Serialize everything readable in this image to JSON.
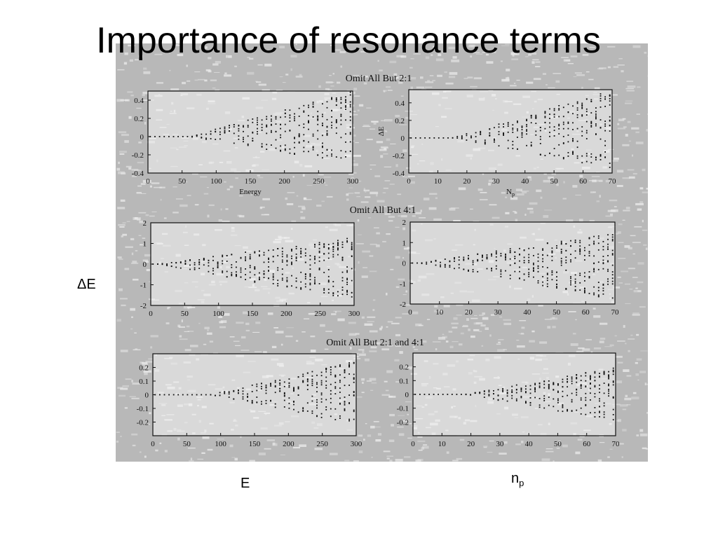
{
  "slide": {
    "title": "Importance of resonance terms",
    "y_axis_label": "ΔE",
    "x_axis_label_left": "E",
    "x_axis_label_right_base": "n",
    "x_axis_label_right_sub": "p"
  },
  "colors": {
    "scan_background": "#b8b8b8",
    "speckle": "#e9e9e9",
    "panel_fill": "#f4f4f4",
    "ink": "#111111"
  },
  "chart_data": [
    {
      "type": "scatter",
      "group_title": "Omit All But 2:1",
      "panels": [
        {
          "id": "p21_energy",
          "xlabel": "Energy",
          "ylabel": "",
          "xlim": [
            0,
            300
          ],
          "ylim": [
            -0.4,
            0.5
          ],
          "xticks": [
            0,
            50,
            100,
            150,
            200,
            250,
            300
          ],
          "yticks": [
            {
              "v": 0.4,
              "label": "0.4"
            },
            {
              "v": 0.2,
              "label": "0.2"
            },
            {
              "v": 0,
              "label": "0"
            },
            {
              "v": -0.2,
              "label": "-0.2"
            },
            {
              "v": -0.4,
              "label": "-0.4"
            }
          ],
          "envelope": {
            "start": 60,
            "upper": 0.5,
            "lower": -0.3,
            "up_frac": 0.7
          },
          "series": [
            {
              "points": []
            }
          ]
        },
        {
          "id": "p21_np",
          "xlabel": "N",
          "xlabel_sub": "p",
          "ylabel": "ΔE",
          "xlim": [
            0,
            70
          ],
          "ylim": [
            -0.4,
            0.55
          ],
          "xticks": [
            0,
            10,
            20,
            30,
            40,
            50,
            60,
            70
          ],
          "yticks": [
            {
              "v": 0.4,
              "label": "0.4"
            },
            {
              "v": 0.2,
              "label": "0.2"
            },
            {
              "v": 0,
              "label": "0"
            },
            {
              "v": -0.2,
              "label": "-0.2"
            },
            {
              "v": -0.4,
              "label": "-0.4"
            }
          ],
          "envelope": {
            "start": 15,
            "upper": 0.55,
            "lower": -0.35,
            "up_frac": 0.7
          },
          "series": [
            {
              "points": []
            }
          ]
        }
      ]
    },
    {
      "type": "scatter",
      "group_title": "Omit All But 4:1",
      "panels": [
        {
          "id": "p41_energy",
          "xlabel": "",
          "ylabel": "",
          "xlim": [
            0,
            300
          ],
          "ylim": [
            -2,
            2
          ],
          "xticks": [
            0,
            50,
            100,
            150,
            200,
            250,
            300
          ],
          "yticks": [
            {
              "v": 2,
              "label": "2"
            },
            {
              "v": 1,
              "label": "1"
            },
            {
              "v": 0,
              "label": "0"
            },
            {
              "v": -1,
              "label": "-1"
            },
            {
              "v": -2,
              "label": "-2"
            }
          ],
          "envelope": {
            "start": 10,
            "upper": 1.3,
            "lower": -1.8,
            "up_frac": 0.5
          },
          "series": [
            {
              "points": []
            }
          ]
        },
        {
          "id": "p41_np",
          "xlabel": "",
          "ylabel": "",
          "xlim": [
            0,
            70
          ],
          "ylim": [
            -2,
            2
          ],
          "xticks": [
            0,
            10,
            20,
            30,
            40,
            50,
            60,
            70
          ],
          "yticks": [
            {
              "v": 2,
              "label": "2"
            },
            {
              "v": 1,
              "label": "1"
            },
            {
              "v": 0,
              "label": "0"
            },
            {
              "v": -1,
              "label": "-1"
            },
            {
              "v": -2,
              "label": "-2"
            }
          ],
          "envelope": {
            "start": 3,
            "upper": 1.5,
            "lower": -1.8,
            "up_frac": 0.5
          },
          "series": [
            {
              "points": []
            }
          ]
        }
      ]
    },
    {
      "type": "scatter",
      "group_title": "Omit All But 2:1 and 4:1",
      "panels": [
        {
          "id": "p2141_energy",
          "xlabel": "",
          "ylabel": "",
          "xlim": [
            0,
            300
          ],
          "ylim": [
            -0.3,
            0.3
          ],
          "xticks": [
            0,
            50,
            100,
            150,
            200,
            250,
            300
          ],
          "yticks": [
            {
              "v": 0.2,
              "label": "0.2"
            },
            {
              "v": 0.1,
              "label": "0.1"
            },
            {
              "v": 0,
              "label": "0"
            },
            {
              "v": -0.1,
              "label": "-0.1"
            },
            {
              "v": -0.2,
              "label": "-0.2"
            }
          ],
          "envelope": {
            "start": 85,
            "upper": 0.25,
            "lower": -0.22,
            "up_frac": 0.6
          },
          "series": [
            {
              "points": []
            }
          ]
        },
        {
          "id": "p2141_np",
          "xlabel": "",
          "ylabel": "",
          "xlim": [
            0,
            70
          ],
          "ylim": [
            -0.3,
            0.3
          ],
          "xticks": [
            0,
            10,
            20,
            30,
            40,
            50,
            60,
            70
          ],
          "yticks": [
            {
              "v": 0.2,
              "label": "0.2"
            },
            {
              "v": 0.1,
              "label": "0.1"
            },
            {
              "v": 0,
              "label": "0"
            },
            {
              "v": -0.1,
              "label": "-0.1"
            },
            {
              "v": -0.2,
              "label": "-0.2"
            }
          ],
          "envelope": {
            "start": 18,
            "upper": 0.2,
            "lower": -0.2,
            "up_frac": 0.6
          },
          "series": [
            {
              "points": []
            }
          ]
        }
      ]
    }
  ]
}
